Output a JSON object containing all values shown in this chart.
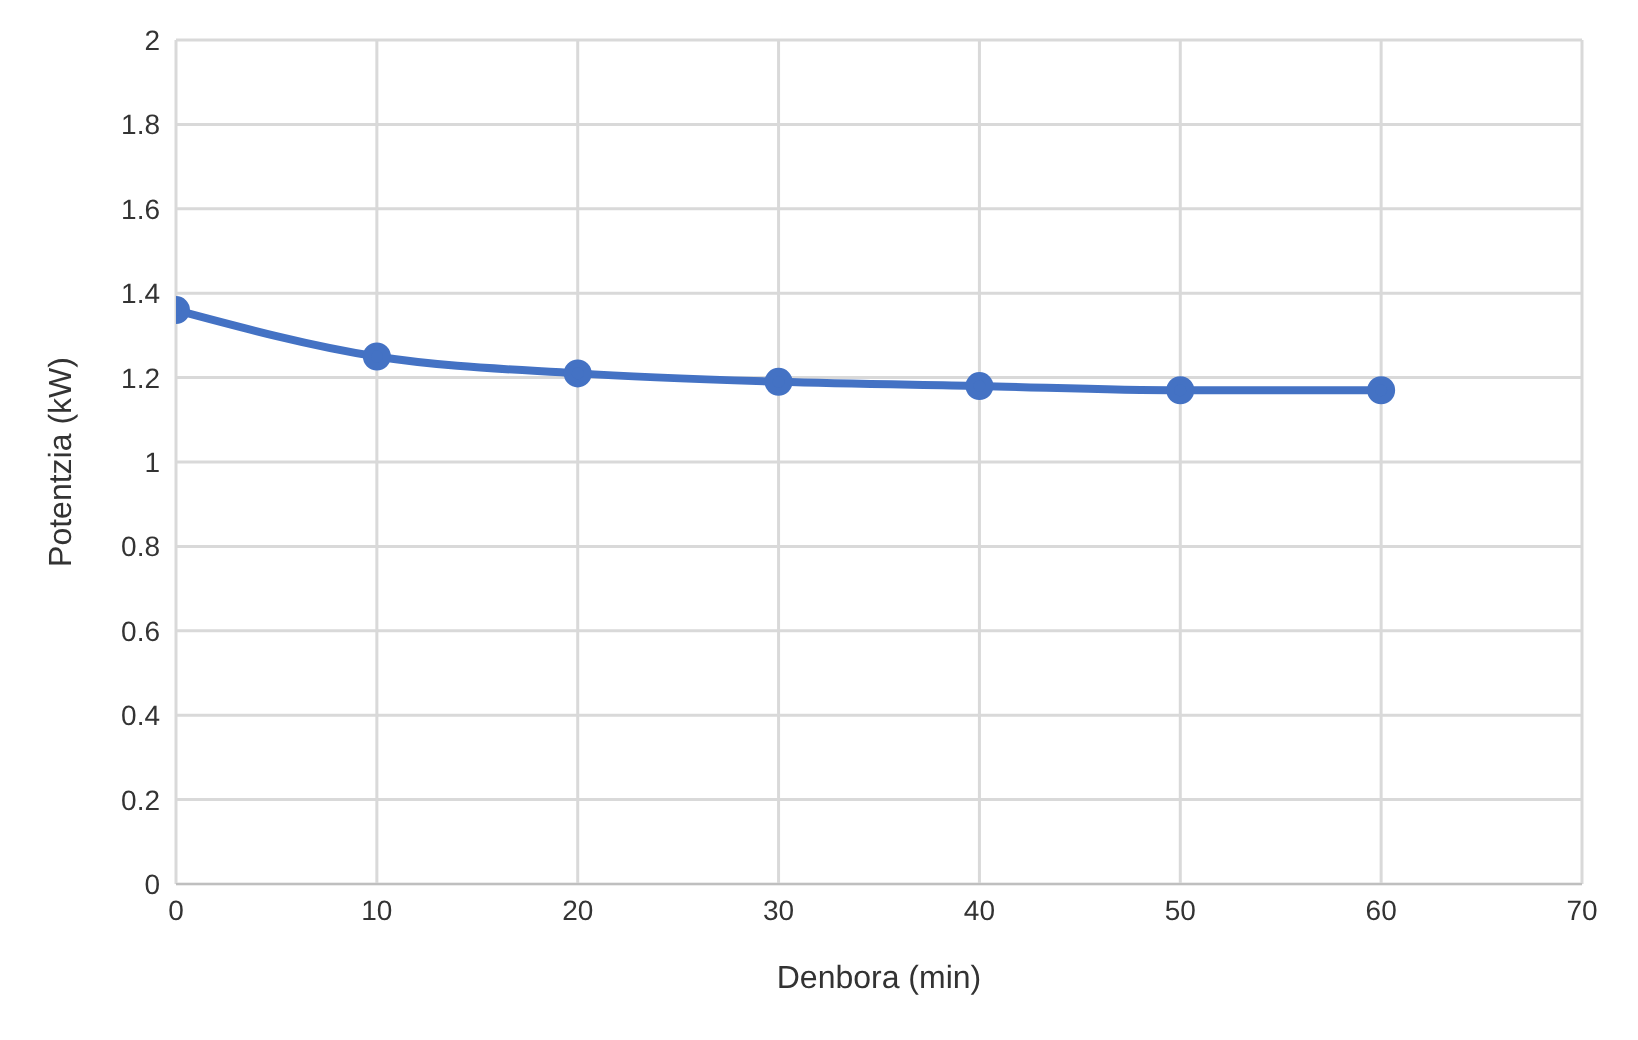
{
  "chart_data": {
    "type": "line",
    "xlabel": "Denbora (min)",
    "ylabel": "Potentzia (kW)",
    "x": [
      0,
      10,
      20,
      30,
      40,
      50,
      60
    ],
    "series": [
      {
        "color": "#4472c4",
        "values": [
          1.36,
          1.25,
          1.21,
          1.19,
          1.18,
          1.17,
          1.17
        ]
      }
    ],
    "xlim": [
      0,
      70
    ],
    "xticks": [
      0,
      10,
      20,
      30,
      40,
      50,
      60,
      70
    ],
    "ylim": [
      0,
      2
    ],
    "yticks": [
      0,
      0.2,
      0.4,
      0.6,
      0.8,
      1,
      1.2,
      1.4,
      1.6,
      1.8,
      2
    ],
    "grid": true,
    "marker": "circle",
    "legend": false
  }
}
